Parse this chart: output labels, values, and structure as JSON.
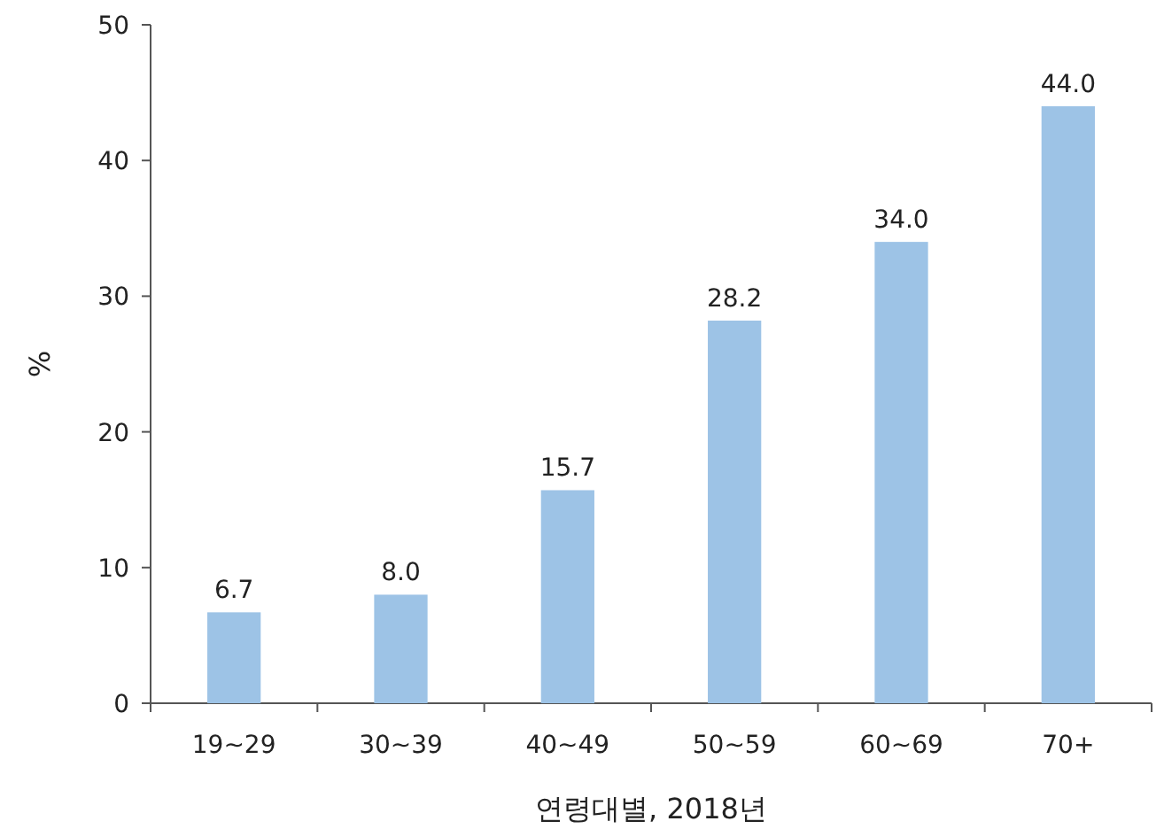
{
  "chart_data": {
    "type": "bar",
    "xlabel": "연령대별, 2018년",
    "ylabel": "%",
    "categories": [
      "19~29",
      "30~39",
      "40~49",
      "50~59",
      "60~69",
      "70+"
    ],
    "values": [
      6.7,
      8.0,
      15.7,
      28.2,
      34.0,
      44.0
    ],
    "value_labels": [
      "6.7",
      "8.0",
      "15.7",
      "28.2",
      "34.0",
      "44.0"
    ],
    "color": "#9dc3e6",
    "ylim": [
      0,
      50
    ],
    "yticks": [
      0,
      10,
      20,
      30,
      40,
      50
    ],
    "grid": false
  }
}
